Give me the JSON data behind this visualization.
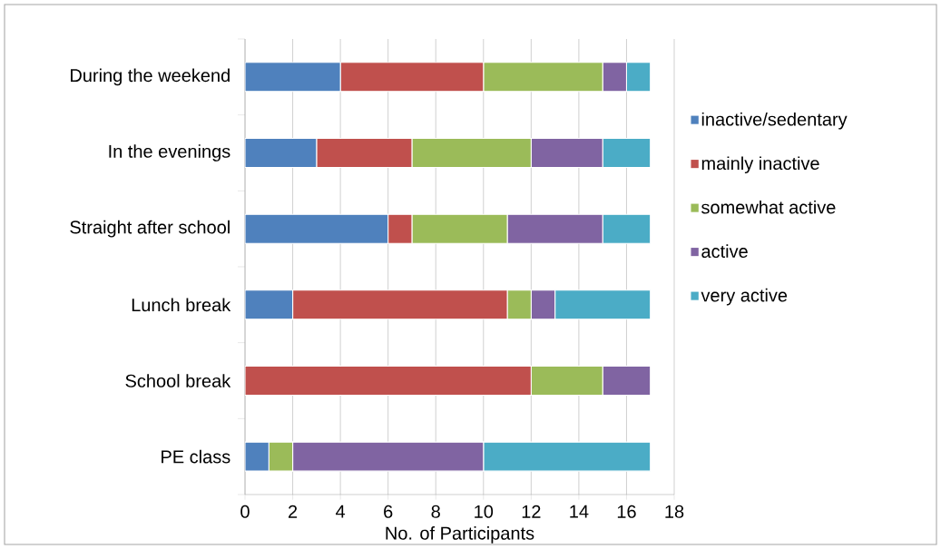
{
  "chart_data": {
    "type": "bar",
    "orientation": "horizontal",
    "stacked": true,
    "xlabel": "No. of Participants",
    "categories": [
      "During the weekend",
      "In the evenings",
      "Straight after school",
      "Lunch break",
      "School break",
      "PE class"
    ],
    "series": [
      {
        "name": "inactive/sedentary",
        "color": "#4f81bd",
        "values": [
          4,
          3,
          6,
          2,
          0,
          1
        ]
      },
      {
        "name": "mainly inactive",
        "color": "#c0504d",
        "values": [
          6,
          4,
          1,
          9,
          12,
          0
        ]
      },
      {
        "name": "somewhat active",
        "color": "#9bbb59",
        "values": [
          5,
          5,
          4,
          1,
          3,
          1
        ]
      },
      {
        "name": "active",
        "color": "#8064a2",
        "values": [
          1,
          3,
          4,
          1,
          2,
          8
        ]
      },
      {
        "name": "very active",
        "color": "#4bacc6",
        "values": [
          1,
          2,
          2,
          4,
          0,
          7
        ]
      }
    ],
    "xlim": [
      0,
      18
    ],
    "xticks": [
      0,
      2,
      4,
      6,
      8,
      10,
      12,
      14,
      16,
      18
    ],
    "grid": "x",
    "legend": "right"
  }
}
